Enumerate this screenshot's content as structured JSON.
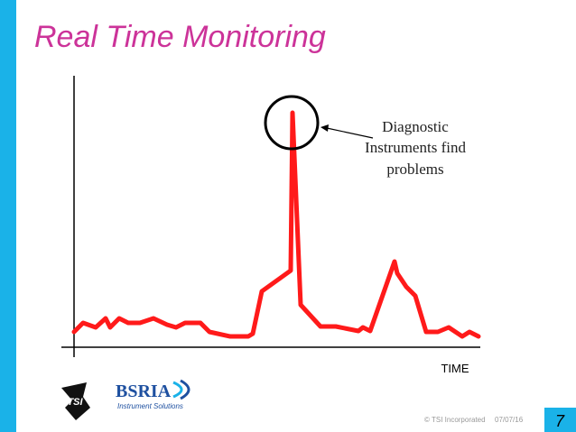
{
  "header": {
    "title": "Real Time Monitoring"
  },
  "annotation": {
    "lines": [
      "Diagnostic",
      "Instruments find",
      "problems"
    ]
  },
  "axis": {
    "x_label": "TIME"
  },
  "logos": {
    "tsi": "TSI",
    "bsria": "BSRIA",
    "bsria_tagline": "Instrument Solutions"
  },
  "footer": {
    "copyright": "© TSI Incorporated",
    "date": "07/07/16",
    "page": "7"
  }
}
